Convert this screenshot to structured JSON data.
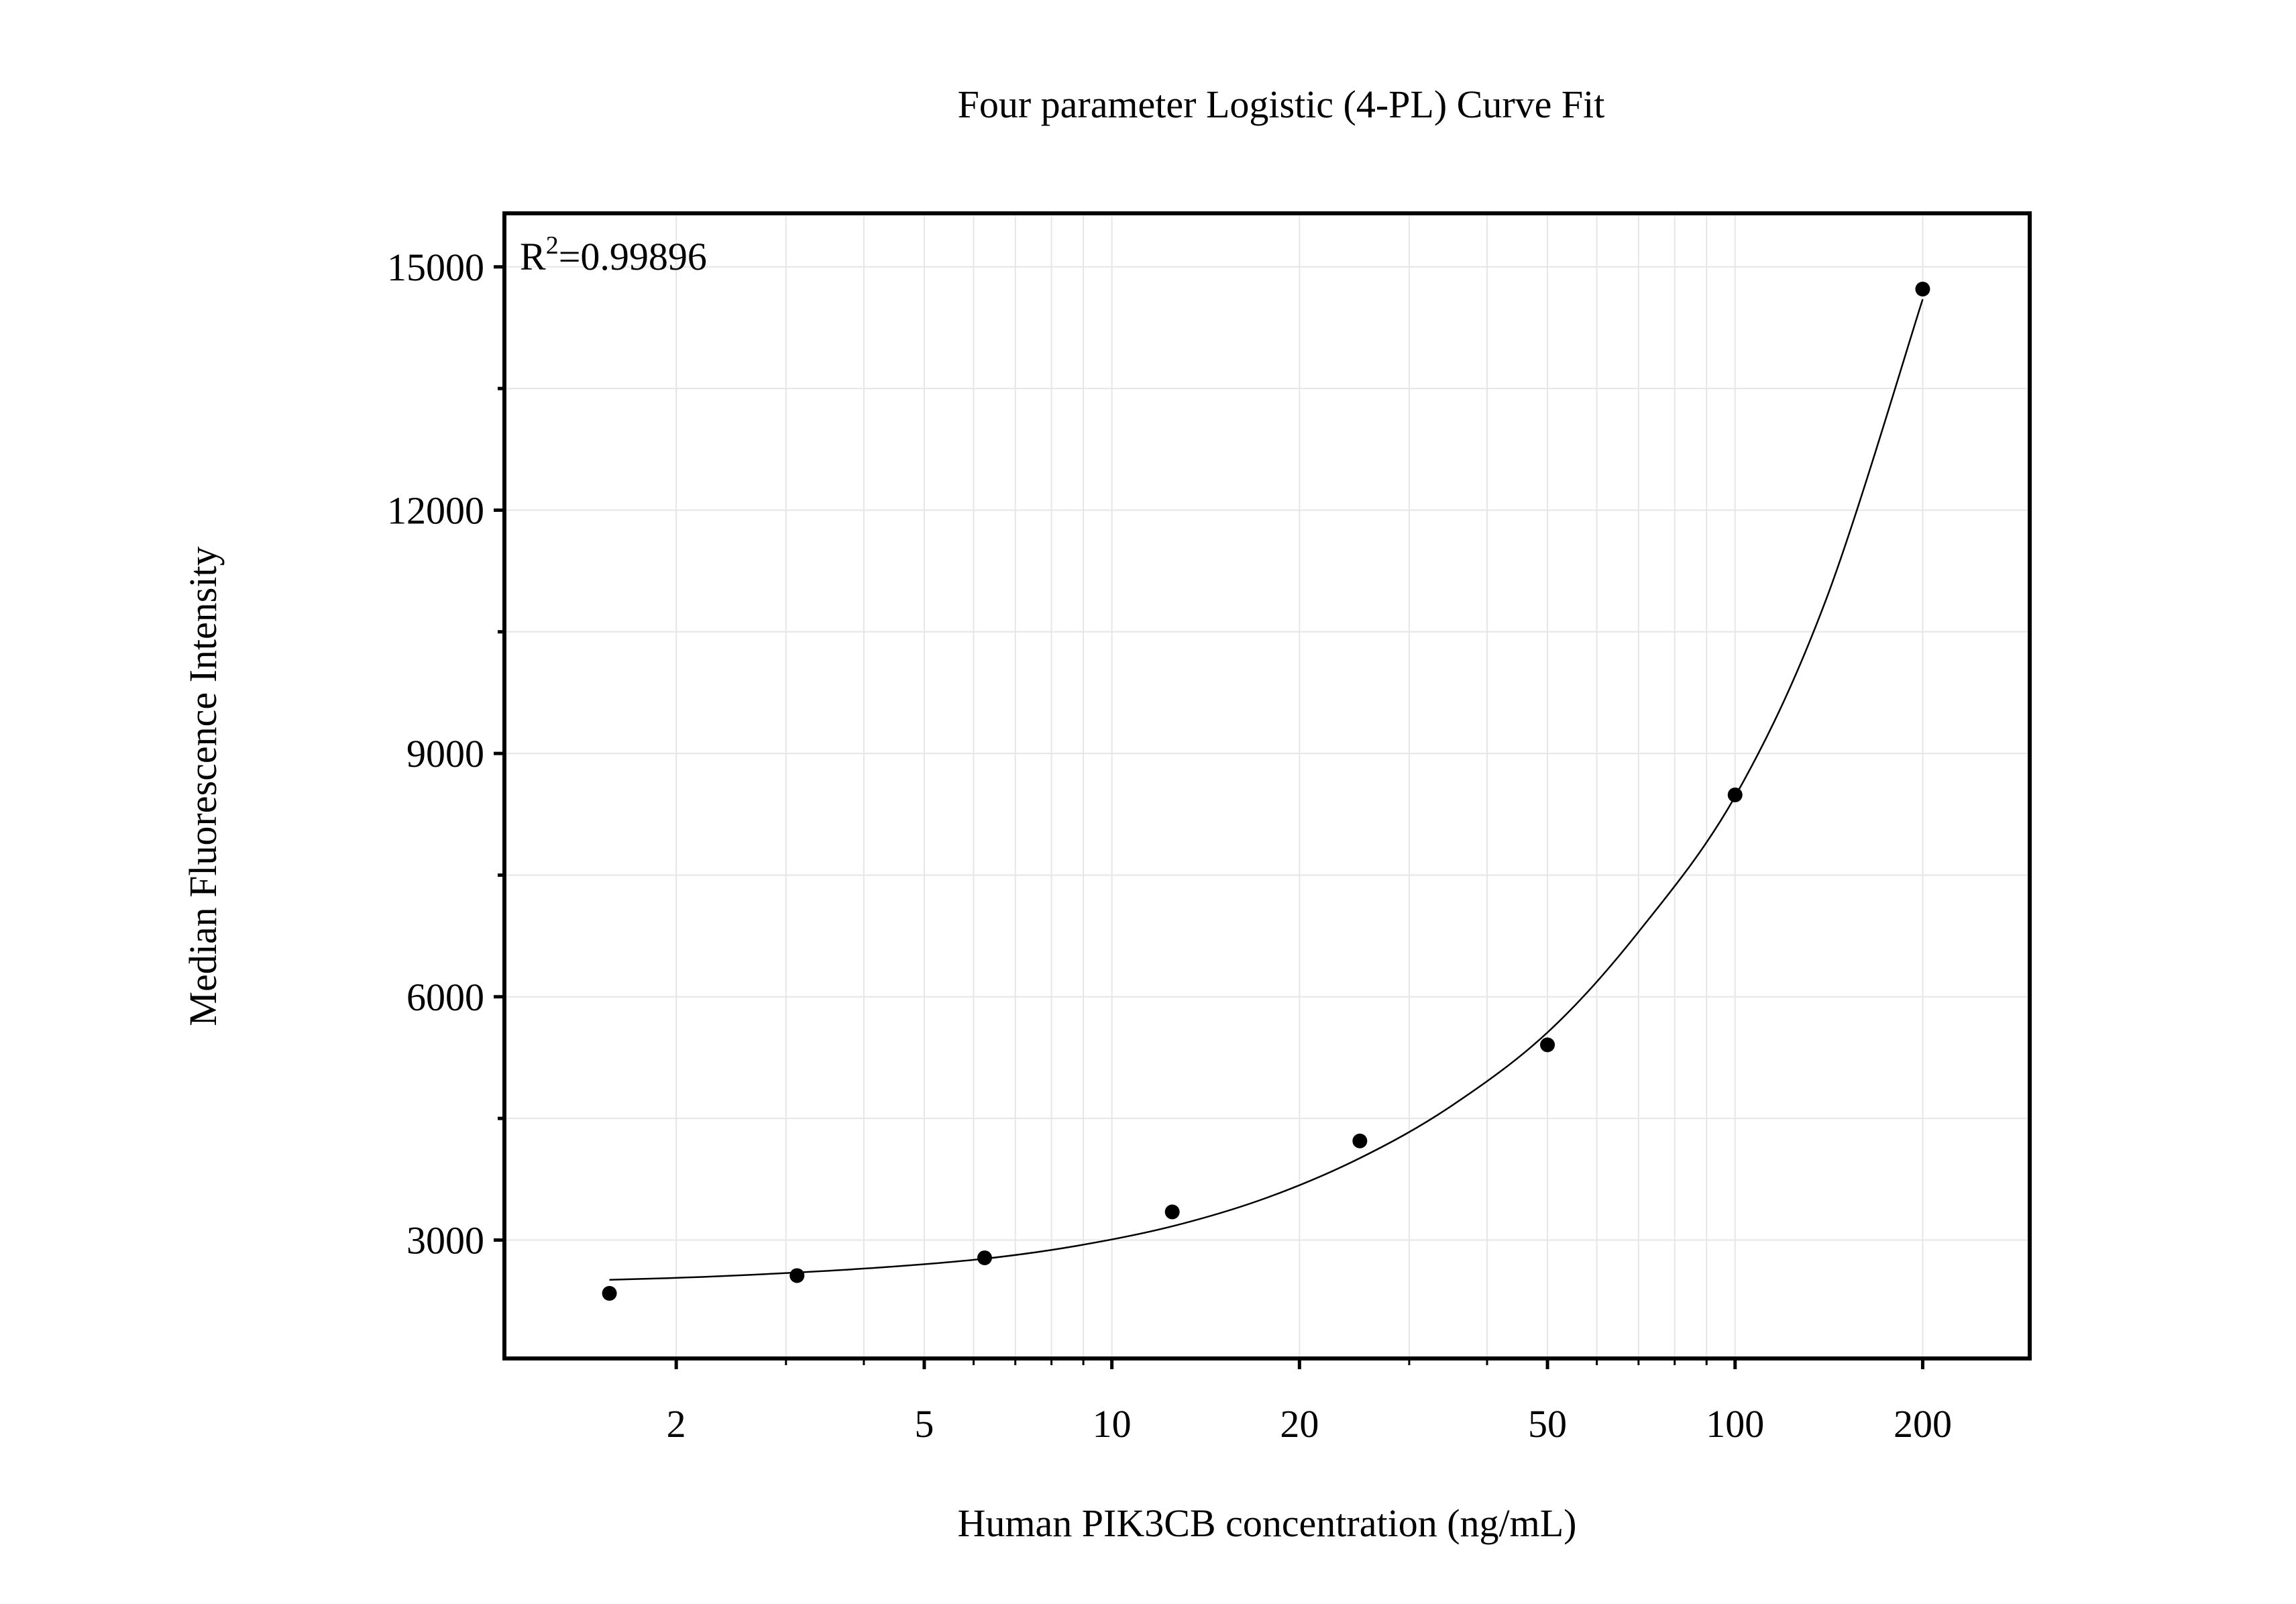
{
  "chart_data": {
    "type": "scatter",
    "title": "Four parameter Logistic (4-PL) Curve Fit",
    "xlabel": "Human PIK3CB concentration (ng/mL)",
    "ylabel": "Median Fluorescence Intensity",
    "annotation": {
      "prefix": "R",
      "sup": "2",
      "value": "=0.99896"
    },
    "x_scale": "log",
    "xlim": [
      1.06,
      297
    ],
    "ylim": [
      1540,
      15660
    ],
    "x_ticks": [
      2,
      5,
      10,
      20,
      50,
      100,
      200
    ],
    "x_tick_labels": [
      "2",
      "5",
      "10",
      "20",
      "50",
      "100",
      "200"
    ],
    "y_ticks": [
      3000,
      6000,
      9000,
      12000,
      15000
    ],
    "y_tick_labels": [
      "3000",
      "6000",
      "9000",
      "12000",
      "15000"
    ],
    "grid": true,
    "points": {
      "x": [
        1.5625,
        3.125,
        6.25,
        12.5,
        25,
        50,
        100,
        200
      ],
      "y": [
        2343,
        2562,
        2781,
        3347,
        4222,
        5407,
        8489,
        14726
      ]
    },
    "fit_curve": {
      "x": [
        1.5625,
        2.2,
        3.125,
        4.4,
        6.25,
        8.8,
        12.5,
        17.7,
        25,
        35,
        50,
        70,
        100,
        140,
        200
      ],
      "y": [
        2510,
        2545,
        2600,
        2670,
        2770,
        2930,
        3170,
        3520,
        4010,
        4650,
        5560,
        6800,
        8470,
        10900,
        14600
      ]
    },
    "colors": {
      "marker": "#000000",
      "line": "#000000",
      "grid": "#e6e6e6"
    }
  }
}
